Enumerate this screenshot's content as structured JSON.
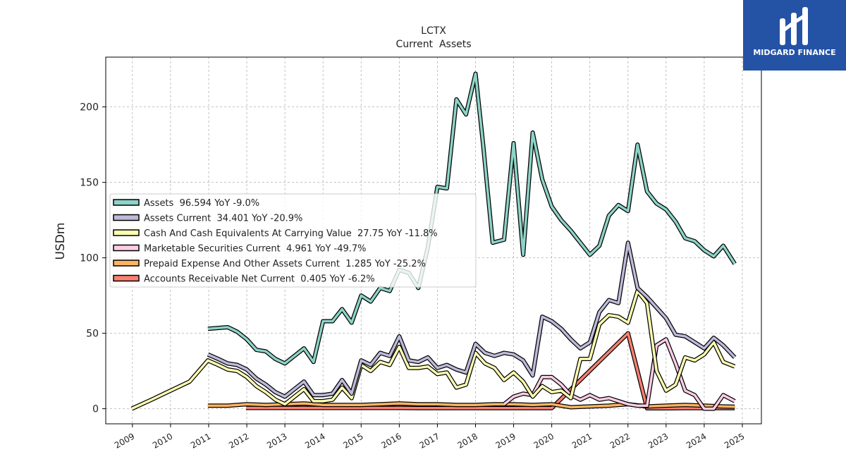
{
  "chart_data": {
    "type": "line",
    "title": "LCTX",
    "subtitle": "Current  Assets",
    "ylabel": "USDm",
    "xlabel": "",
    "ylim": [
      -10,
      233
    ],
    "xlim": [
      2008.3,
      2025.5
    ],
    "yticks": [
      0,
      50,
      100,
      150,
      200
    ],
    "xticks": [
      "2009",
      "2010",
      "2011",
      "2012",
      "2013",
      "2014",
      "2015",
      "2016",
      "2017",
      "2018",
      "2019",
      "2020",
      "2021",
      "2022",
      "2023",
      "2024",
      "2025"
    ],
    "grid": true,
    "legend_position": "center-left",
    "series": [
      {
        "name": "Assets",
        "legend_label": "Assets  96.594 YoY -9.0%",
        "color": "#8dd3c7",
        "x": [
          2010.98,
          2011.5,
          2011.75,
          2012.0,
          2012.25,
          2012.5,
          2012.75,
          2013.0,
          2013.25,
          2013.5,
          2013.75,
          2014.0,
          2014.25,
          2014.5,
          2014.75,
          2015.0,
          2015.25,
          2015.5,
          2015.75,
          2016.0,
          2016.25,
          2016.5,
          2016.75,
          2017.0,
          2017.25,
          2017.5,
          2017.75,
          2018.0,
          2018.2,
          2018.45,
          2018.75,
          2019.0,
          2019.25,
          2019.5,
          2019.75,
          2020.0,
          2020.25,
          2020.5,
          2020.75,
          2021.0,
          2021.25,
          2021.5,
          2021.75,
          2022.0,
          2022.25,
          2022.5,
          2022.75,
          2023.0,
          2023.25,
          2023.5,
          2023.75,
          2024.0,
          2024.25,
          2024.5,
          2024.8
        ],
        "y": [
          53,
          54,
          51,
          46,
          39,
          38,
          33,
          30,
          35,
          40,
          31,
          58,
          58,
          66,
          57,
          75,
          71,
          80,
          78,
          92,
          90,
          80,
          107,
          147,
          146,
          205,
          195,
          222,
          175,
          110,
          112,
          176,
          102,
          183,
          152,
          134,
          125,
          118,
          110,
          102,
          108,
          128,
          135,
          131,
          175,
          144,
          136,
          132,
          124,
          113,
          111,
          105,
          101,
          108,
          96
        ]
      },
      {
        "name": "Assets Current",
        "legend_label": "Assets Current  34.401 YoY -20.9%",
        "color": "#bebada",
        "x": [
          2010.98,
          2011.25,
          2011.5,
          2011.75,
          2012.0,
          2012.25,
          2012.5,
          2012.75,
          2013.0,
          2013.25,
          2013.5,
          2013.75,
          2014.0,
          2014.25,
          2014.5,
          2014.75,
          2015.0,
          2015.25,
          2015.5,
          2015.75,
          2016.0,
          2016.25,
          2016.5,
          2016.75,
          2017.0,
          2017.25,
          2017.5,
          2017.75,
          2018.0,
          2018.25,
          2018.5,
          2018.75,
          2019.0,
          2019.25,
          2019.5,
          2019.75,
          2020.0,
          2020.25,
          2020.5,
          2020.75,
          2021.0,
          2021.25,
          2021.5,
          2021.75,
          2022.0,
          2022.25,
          2022.5,
          2022.75,
          2023.0,
          2023.25,
          2023.5,
          2023.75,
          2024.0,
          2024.25,
          2024.5,
          2024.8
        ],
        "y": [
          36,
          33,
          30,
          29,
          26,
          20,
          16,
          11,
          8,
          13,
          18,
          9,
          9,
          10,
          19,
          10,
          32,
          29,
          37,
          35,
          48,
          32,
          31,
          34,
          27,
          29,
          26,
          24,
          43,
          37,
          35,
          37,
          36,
          32,
          22,
          61,
          58,
          53,
          46,
          40,
          44,
          64,
          72,
          70,
          110,
          80,
          74,
          67,
          60,
          49,
          48,
          44,
          40,
          47,
          42,
          34
        ]
      },
      {
        "name": "Cash And Cash Equivalents At Carrying Value",
        "legend_label": "Cash And Cash Equivalents At Carrying Value  27.75 YoY -11.8%",
        "color": "#ffffb3",
        "x": [
          2008.98,
          2009.5,
          2010.0,
          2010.5,
          2010.98,
          2011.25,
          2011.5,
          2011.75,
          2012.0,
          2012.25,
          2012.5,
          2012.75,
          2013.0,
          2013.25,
          2013.5,
          2013.75,
          2014.0,
          2014.25,
          2014.5,
          2014.75,
          2015.0,
          2015.25,
          2015.5,
          2015.75,
          2016.0,
          2016.25,
          2016.5,
          2016.75,
          2017.0,
          2017.25,
          2017.5,
          2017.75,
          2018.0,
          2018.25,
          2018.5,
          2018.75,
          2019.0,
          2019.25,
          2019.5,
          2019.75,
          2020.0,
          2020.25,
          2020.5,
          2020.75,
          2021.0,
          2021.25,
          2021.5,
          2021.75,
          2022.0,
          2022.25,
          2022.5,
          2022.75,
          2023.0,
          2023.25,
          2023.5,
          2023.75,
          2024.0,
          2024.25,
          2024.5,
          2024.8
        ],
        "y": [
          0,
          6,
          12,
          18,
          32,
          29,
          26,
          25,
          21,
          15,
          11,
          6,
          3,
          8,
          13,
          5,
          5,
          6,
          14,
          7,
          29,
          25,
          31,
          29,
          41,
          27,
          27,
          28,
          23,
          24,
          14,
          16,
          37,
          30,
          27,
          19,
          24,
          18,
          8,
          15,
          11,
          12,
          7,
          33,
          33,
          56,
          62,
          61,
          57,
          78,
          70,
          25,
          12,
          16,
          34,
          32,
          36,
          44,
          31,
          28
        ]
      },
      {
        "name": "Marketable Securities Current",
        "legend_label": "Marketable Securities Current  4.961 YoY -49.7%",
        "color": "#fccde5",
        "x": [
          2018.75,
          2019.0,
          2019.25,
          2019.5,
          2019.75,
          2020.0,
          2020.25,
          2020.5,
          2020.75,
          2021.0,
          2021.25,
          2021.5,
          2021.75,
          2022.0,
          2022.25,
          2022.5,
          2022.75,
          2023.0,
          2023.25,
          2023.5,
          2023.75,
          2024.0,
          2024.25,
          2024.5,
          2024.8
        ],
        "y": [
          3,
          8,
          10,
          9,
          21,
          21,
          16,
          9,
          6,
          9,
          6,
          7,
          5,
          3,
          2,
          2,
          42,
          46,
          30,
          12,
          9,
          0,
          0,
          9,
          5
        ]
      },
      {
        "name": "Prepaid Expense And Other Assets Current",
        "legend_label": "Prepaid Expense And Other Assets Current  1.285 YoY -25.2%",
        "color": "#fdb462",
        "x": [
          2010.98,
          2011.5,
          2012.0,
          2012.5,
          2013.0,
          2013.5,
          2014.0,
          2014.5,
          2015.0,
          2015.5,
          2016.0,
          2016.5,
          2017.0,
          2017.5,
          2018.0,
          2018.5,
          2019.0,
          2019.5,
          2020.0,
          2020.5,
          2021.0,
          2021.5,
          2022.0,
          2022.5,
          2023.0,
          2023.5,
          2024.0,
          2024.5,
          2024.8
        ],
        "y": [
          2,
          2,
          3,
          2.5,
          3,
          3.5,
          2.5,
          2.5,
          2.5,
          3,
          3.5,
          3,
          3,
          2.5,
          2.5,
          3,
          3,
          2.5,
          3,
          1,
          1.5,
          2,
          3,
          1.5,
          2,
          2.5,
          2,
          1.5,
          1.3
        ]
      },
      {
        "name": "Accounts Receivable Net Current",
        "legend_label": "Accounts Receivable Net Current  0.405 YoY -6.2%",
        "color": "#fb8072",
        "x": [
          2011.98,
          2012.5,
          2013.0,
          2013.5,
          2014.0,
          2014.5,
          2015.0,
          2015.5,
          2016.0,
          2016.5,
          2017.0,
          2017.5,
          2018.0,
          2018.5,
          2019.0,
          2019.5,
          2020.0,
          2022.0,
          2022.5,
          2023.0,
          2023.5,
          2024.0,
          2024.5,
          2024.8
        ],
        "y": [
          0.5,
          0.5,
          0.5,
          0.5,
          0.5,
          0.5,
          0.5,
          0.5,
          0.5,
          0.4,
          0.4,
          0.4,
          0.4,
          0.4,
          0.4,
          0.4,
          0.4,
          50,
          0.3,
          0.3,
          0.4,
          0.4,
          0.4,
          0.4
        ]
      }
    ]
  },
  "brand": {
    "name": "MIDGARD FINANCE",
    "color": "#2453a6"
  }
}
